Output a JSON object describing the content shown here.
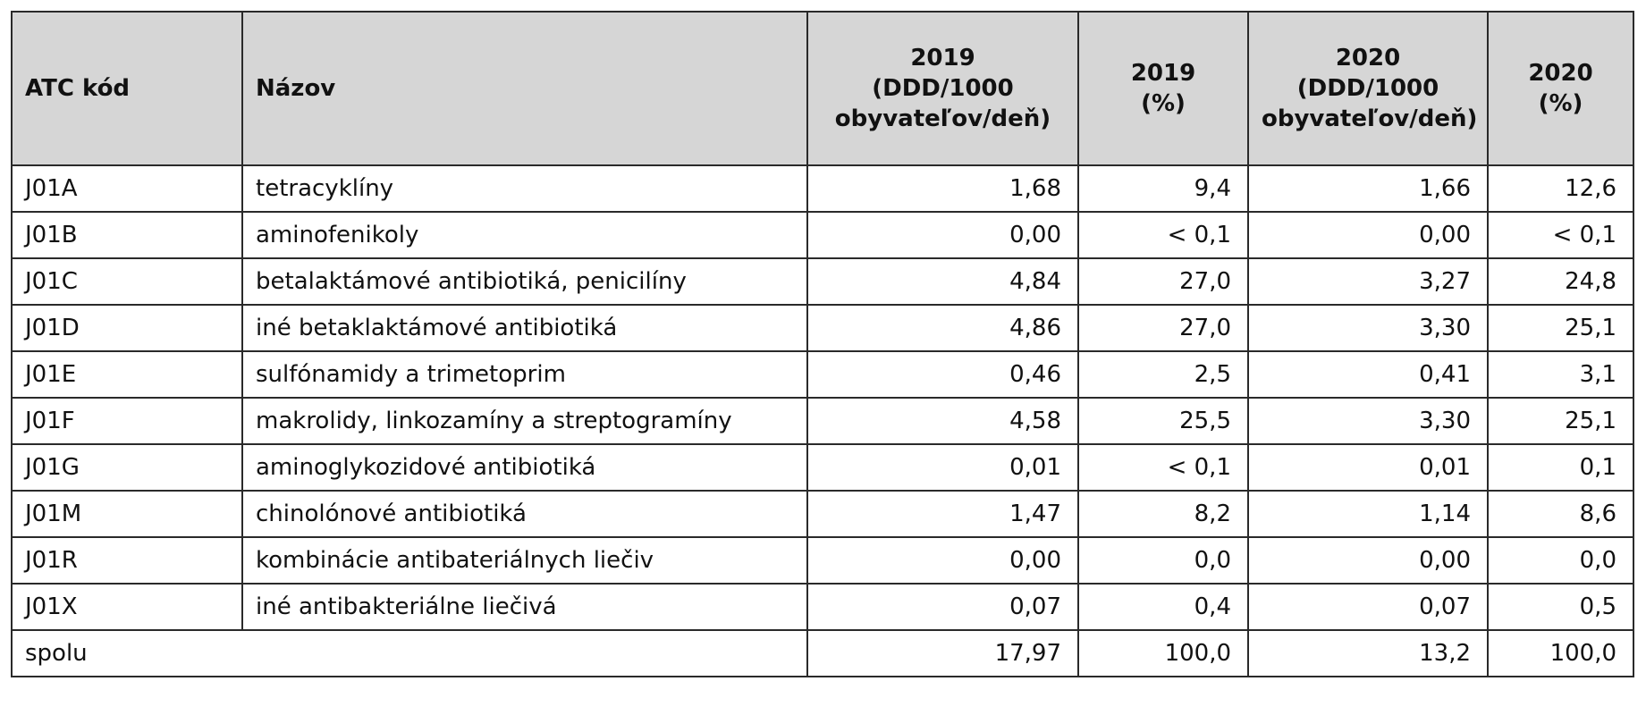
{
  "table": {
    "headers": {
      "atc": "ATC kód",
      "name": "Názov",
      "y2019_ddd": [
        "2019",
        "(DDD/1000",
        "obyvateľov/deň)"
      ],
      "y2019_pct": [
        "2019",
        "(%)"
      ],
      "y2020_ddd": [
        "2020",
        "(DDD/1000",
        "obyvateľov/deň)"
      ],
      "y2020_pct": [
        "2020",
        "(%)"
      ]
    },
    "rows": [
      {
        "atc": "J01A",
        "name": "tetracyklíny",
        "v2019": "1,68",
        "p2019": "9,4",
        "v2020": "1,66",
        "p2020": "12,6"
      },
      {
        "atc": "J01B",
        "name": "aminofenikoly",
        "v2019": "0,00",
        "p2019": "< 0,1",
        "v2020": "0,00",
        "p2020": "< 0,1"
      },
      {
        "atc": "J01C",
        "name": "betalaktámové antibiotiká, penicilíny",
        "v2019": "4,84",
        "p2019": "27,0",
        "v2020": "3,27",
        "p2020": "24,8"
      },
      {
        "atc": "J01D",
        "name": "iné betaklaktámové antibiotiká",
        "v2019": "4,86",
        "p2019": "27,0",
        "v2020": "3,30",
        "p2020": "25,1"
      },
      {
        "atc": "J01E",
        "name": "sulfónamidy a trimetoprim",
        "v2019": "0,46",
        "p2019": "2,5",
        "v2020": "0,41",
        "p2020": "3,1"
      },
      {
        "atc": "J01F",
        "name": "makrolidy, linkozamíny a streptogramíny",
        "v2019": "4,58",
        "p2019": "25,5",
        "v2020": "3,30",
        "p2020": "25,1"
      },
      {
        "atc": "J01G",
        "name": "aminoglykozidové antibiotiká",
        "v2019": "0,01",
        "p2019": "< 0,1",
        "v2020": "0,01",
        "p2020": "0,1"
      },
      {
        "atc": "J01M",
        "name": "chinolónové antibiotiká",
        "v2019": "1,47",
        "p2019": "8,2",
        "v2020": "1,14",
        "p2020": "8,6"
      },
      {
        "atc": "J01R",
        "name": "kombinácie antibateriálnych liečiv",
        "v2019": "0,00",
        "p2019": "0,0",
        "v2020": "0,00",
        "p2020": "0,0"
      },
      {
        "atc": "J01X",
        "name": "iné antibakteriálne liečivá",
        "v2019": "0,07",
        "p2019": "0,4",
        "v2020": "0,07",
        "p2020": "0,5"
      }
    ],
    "total": {
      "label": "spolu",
      "v2019": "17,97",
      "p2019": "100,0",
      "v2020": "13,2",
      "p2020": "100,0"
    }
  }
}
